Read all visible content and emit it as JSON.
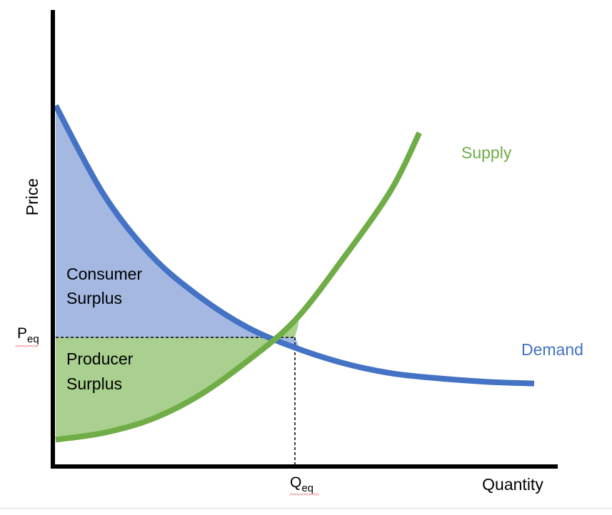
{
  "chart_data": {
    "type": "line",
    "title": "",
    "xlabel": "Quantity",
    "ylabel": "Price",
    "grid": false,
    "legend": "none",
    "series": [
      {
        "name": "Demand",
        "color": "#4472C4",
        "points": [
          [
            0,
            1.0
          ],
          [
            0.1,
            0.74
          ],
          [
            0.2,
            0.56
          ],
          [
            0.3,
            0.44
          ],
          [
            0.4,
            0.35
          ],
          [
            0.5,
            0.29
          ],
          [
            0.6,
            0.245
          ],
          [
            0.7,
            0.215
          ],
          [
            0.8,
            0.2
          ],
          [
            0.9,
            0.19
          ],
          [
            1.0,
            0.185
          ]
        ]
      },
      {
        "name": "Supply",
        "color": "#70AD47",
        "points": [
          [
            0,
            0.02
          ],
          [
            0.1,
            0.04
          ],
          [
            0.2,
            0.08
          ],
          [
            0.3,
            0.15
          ],
          [
            0.4,
            0.25
          ],
          [
            0.5,
            0.37
          ],
          [
            0.6,
            0.55
          ],
          [
            0.7,
            0.75
          ],
          [
            0.76,
            0.92
          ]
        ]
      }
    ],
    "equilibrium": {
      "price_label": "P",
      "price_subscript": "eq",
      "quantity_label": "Q",
      "quantity_subscript": "eq"
    },
    "regions": {
      "consumer_surplus": {
        "line1": "Consumer",
        "line2": "Surplus",
        "color": "#A4B8E2"
      },
      "producer_surplus": {
        "line1": "Producer",
        "line2": "Surplus",
        "color": "#A9D08E"
      }
    }
  }
}
